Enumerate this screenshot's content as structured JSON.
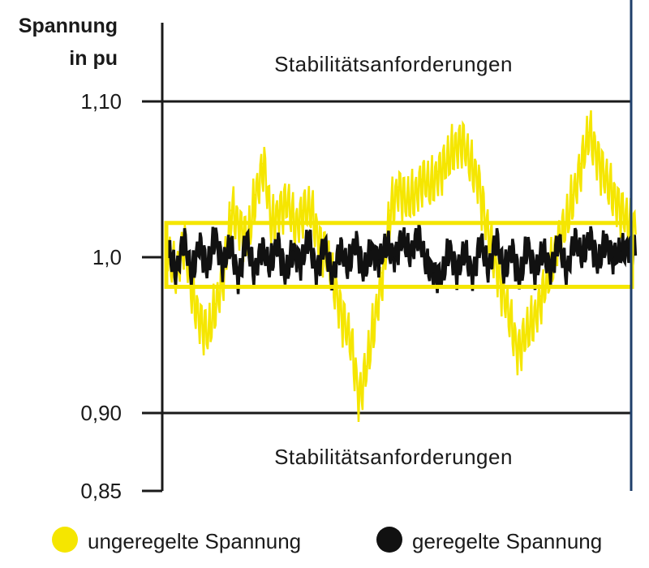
{
  "chart_data": {
    "type": "line",
    "ylabel_line1": "Spannung",
    "ylabel_line2": "in pu",
    "ylim": [
      0.85,
      1.15
    ],
    "yticks": [
      {
        "value": 1.1,
        "label": "1,10"
      },
      {
        "value": 1.0,
        "label": "1,0"
      },
      {
        "value": 0.9,
        "label": "0,90"
      },
      {
        "value": 0.85,
        "label": "0,85"
      }
    ],
    "limit_lines": [
      1.1,
      0.9
    ],
    "band": [
      0.981,
      1.022
    ],
    "annotations": {
      "upper": "Stabilitätsanforderungen",
      "lower": "Stabilitätsanforderungen"
    },
    "colors": {
      "yellow": "#f5e600",
      "black": "#111111",
      "axis": "#1a1a1a",
      "right_border": "#1f3f6b"
    },
    "series": [
      {
        "name": "ungeregelte Spannung",
        "color": "#f5e600",
        "values": [
          1.0,
          0.99,
          1.01,
          0.975,
          0.96,
          0.95,
          0.97,
          0.99,
          1.03,
          1.02,
          1.01,
          1.04,
          1.06,
          1.02,
          1.03,
          1.035,
          1.02,
          1.03,
          1.03,
          1.01,
          1.0,
          0.98,
          0.96,
          0.945,
          0.91,
          0.93,
          0.96,
          0.99,
          1.03,
          1.045,
          1.035,
          1.04,
          1.05,
          1.045,
          1.055,
          1.06,
          1.07,
          1.075,
          1.06,
          1.05,
          1.02,
          1.0,
          0.98,
          0.96,
          0.94,
          0.95,
          0.96,
          0.975,
          0.99,
          1.01,
          1.02,
          1.04,
          1.06,
          1.08,
          1.065,
          1.05,
          1.04,
          1.03,
          1.02
        ]
      },
      {
        "name": "geregelte Spannung",
        "color": "#111111",
        "values": [
          1.005,
          0.99,
          1.012,
          0.988,
          1.01,
          0.992,
          1.014,
          0.995,
          1.008,
          0.986,
          1.012,
          0.99,
          1.006,
          0.994,
          1.01,
          0.988,
          1.004,
          0.996,
          1.012,
          0.99,
          1.008,
          0.987,
          1.006,
          0.993,
          1.011,
          0.99,
          1.004,
          0.998,
          1.008,
          1.0,
          1.012,
          1.002,
          1.015,
          0.996,
          0.99,
          0.986,
          1.006,
          0.99,
          1.004,
          0.988,
          1.01,
          0.992,
          1.012,
          0.99,
          1.006,
          0.985,
          1.008,
          0.99,
          1.004,
          0.992,
          1.01,
          0.99,
          1.012,
          1.0,
          1.014,
          0.995,
          1.01,
          1.0,
          1.004,
          1.006
        ]
      }
    ],
    "legend": {
      "placement": "bottom"
    }
  }
}
